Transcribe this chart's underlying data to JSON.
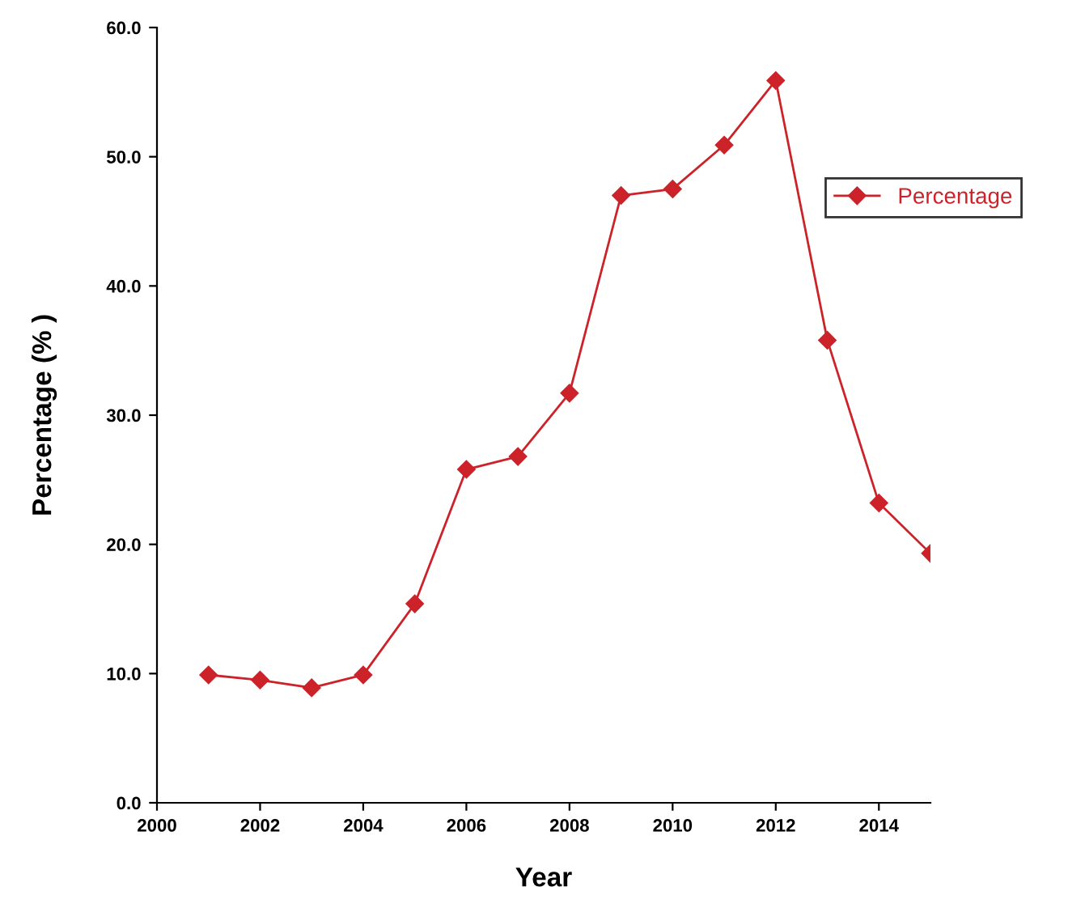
{
  "chart_data": {
    "type": "line",
    "xlabel": "Year",
    "ylabel": "Percentage (% )",
    "x": [
      2001,
      2002,
      2003,
      2004,
      2005,
      2006,
      2007,
      2008,
      2009,
      2010,
      2011,
      2012,
      2013,
      2014,
      2015
    ],
    "series": [
      {
        "name": "Percentage",
        "color": "#cc2229",
        "values": [
          9.9,
          9.5,
          8.9,
          9.9,
          15.4,
          25.8,
          26.8,
          31.7,
          47.0,
          47.5,
          50.9,
          55.9,
          35.8,
          23.2,
          19.3
        ]
      }
    ],
    "xlim": [
      2000,
      2015
    ],
    "xticks": [
      2000,
      2002,
      2004,
      2006,
      2008,
      2010,
      2012,
      2014
    ],
    "ylim": [
      0,
      60
    ],
    "yticks": [
      {
        "value": 0,
        "label": "0.0"
      },
      {
        "value": 10,
        "label": "10.0"
      },
      {
        "value": 20,
        "label": "20.0"
      },
      {
        "value": 30,
        "label": "30.0"
      },
      {
        "value": 40,
        "label": "40.0"
      },
      {
        "value": 50,
        "label": "50.0"
      },
      {
        "value": 60,
        "label": "60.0"
      }
    ],
    "marker": "diamond",
    "line_style": "solid",
    "grid": false,
    "legend": "top right"
  }
}
